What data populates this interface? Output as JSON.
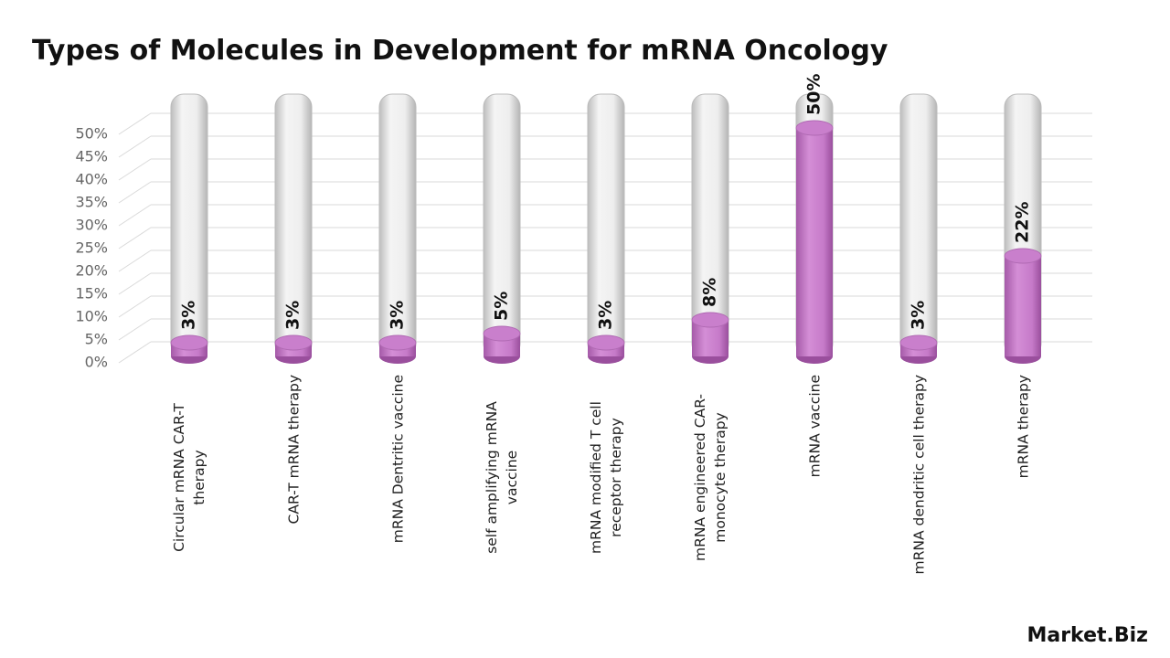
{
  "chart_data": {
    "type": "bar",
    "title": "Types of Molecules in Development for mRNA Oncology",
    "categories": [
      "Circular mRNA CAR-T therapy",
      "CAR-T mRNA therapy",
      "mRNA Dentritic vaccine",
      "self amplifying mRNA vaccine",
      "mRNA modified T cell receptor therapy",
      "mRNA engineered CAR-monocyte therapy",
      "mRNA vaccine",
      "mRNA dendritic cell therapy",
      "mRNA therapy"
    ],
    "values": [
      3,
      3,
      3,
      5,
      3,
      8,
      50,
      3,
      22
    ],
    "value_labels": [
      "3%",
      "3%",
      "3%",
      "5%",
      "3%",
      "8%",
      "50%",
      "3%",
      "22%"
    ],
    "color": "#c97fcc",
    "ylim": [
      0,
      50
    ],
    "yticks": [
      {
        "value": 0,
        "label": "0%"
      },
      {
        "value": 5,
        "label": "5%"
      },
      {
        "value": 10,
        "label": "10%"
      },
      {
        "value": 15,
        "label": "15%"
      },
      {
        "value": 20,
        "label": "20%"
      },
      {
        "value": 25,
        "label": "25%"
      },
      {
        "value": 30,
        "label": "30%"
      },
      {
        "value": 35,
        "label": "35%"
      },
      {
        "value": 40,
        "label": "40%"
      },
      {
        "value": 45,
        "label": "45%"
      },
      {
        "value": 50,
        "label": "50%"
      }
    ],
    "grid": true,
    "watermark": "Market.Biz"
  }
}
